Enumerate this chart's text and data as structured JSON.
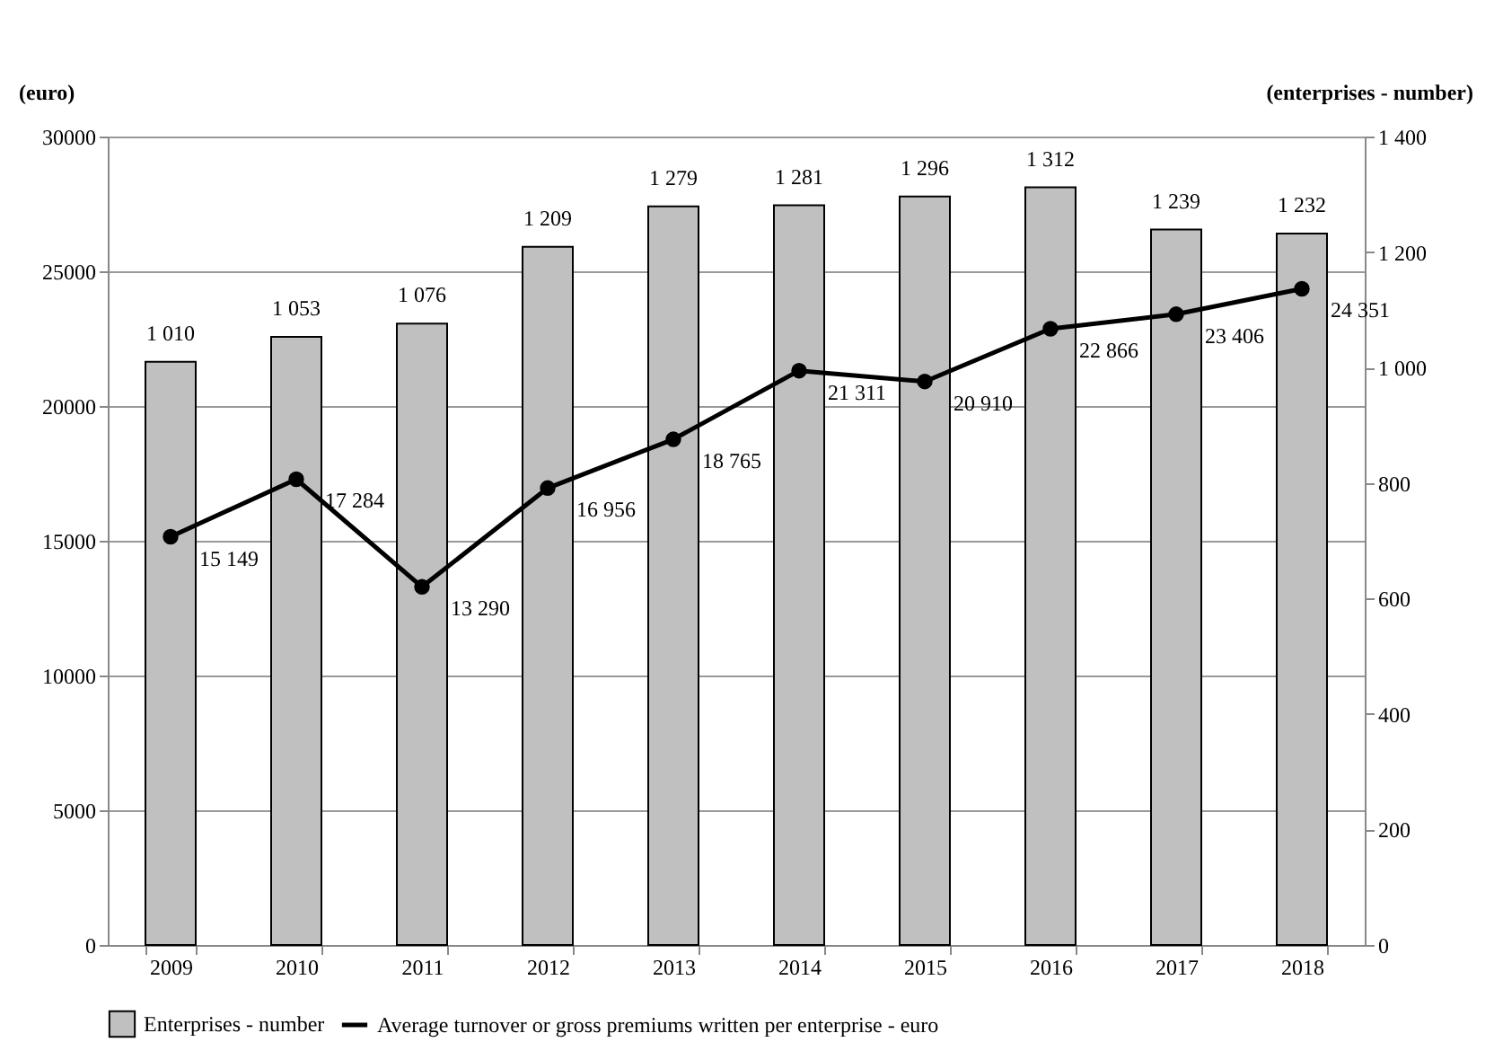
{
  "chart_data": {
    "type": "bar",
    "ylabel": "(euro)",
    "y2label": "(enterprises  - number)",
    "categories": [
      "2009",
      "2010",
      "2011",
      "2012",
      "2013",
      "2014",
      "2015",
      "2016",
      "2017",
      "2018"
    ],
    "series": [
      {
        "name": "Enterprises - number",
        "axis": "y2",
        "color": "#c0c0c0",
        "values": [
          1010,
          1053,
          1076,
          1209,
          1279,
          1281,
          1296,
          1312,
          1239,
          1232
        ],
        "value_labels": [
          "1 010",
          "1 053",
          "1 076",
          "1 209",
          "1 279",
          "1 281",
          "1 296",
          "1 312",
          "1 239",
          "1 232"
        ]
      },
      {
        "name": "Average turnover or gross premiums written per enterprise - euro",
        "type": "line",
        "axis": "y",
        "color": "#000000",
        "marker": "circle",
        "values": [
          15149,
          17284,
          13290,
          16956,
          18765,
          21311,
          20910,
          22866,
          23406,
          24351
        ],
        "value_labels": [
          "15 149",
          "17 284",
          "13 290",
          "16 956",
          "18 765",
          "21 311",
          "20 910",
          "22 866",
          "23 406",
          "24 351"
        ]
      }
    ],
    "ylim": [
      0,
      30000
    ],
    "yticks": [
      0,
      5000,
      10000,
      15000,
      20000,
      25000,
      30000
    ],
    "y2lim": [
      0,
      1400
    ],
    "y2ticks": [
      0,
      200,
      400,
      600,
      800,
      {
        "value": 1000,
        "label": "1 000"
      },
      {
        "value": 1200,
        "label": "1 200"
      },
      {
        "value": 1400,
        "label": "1 400"
      }
    ],
    "grid": "y",
    "legend": "bottom"
  }
}
